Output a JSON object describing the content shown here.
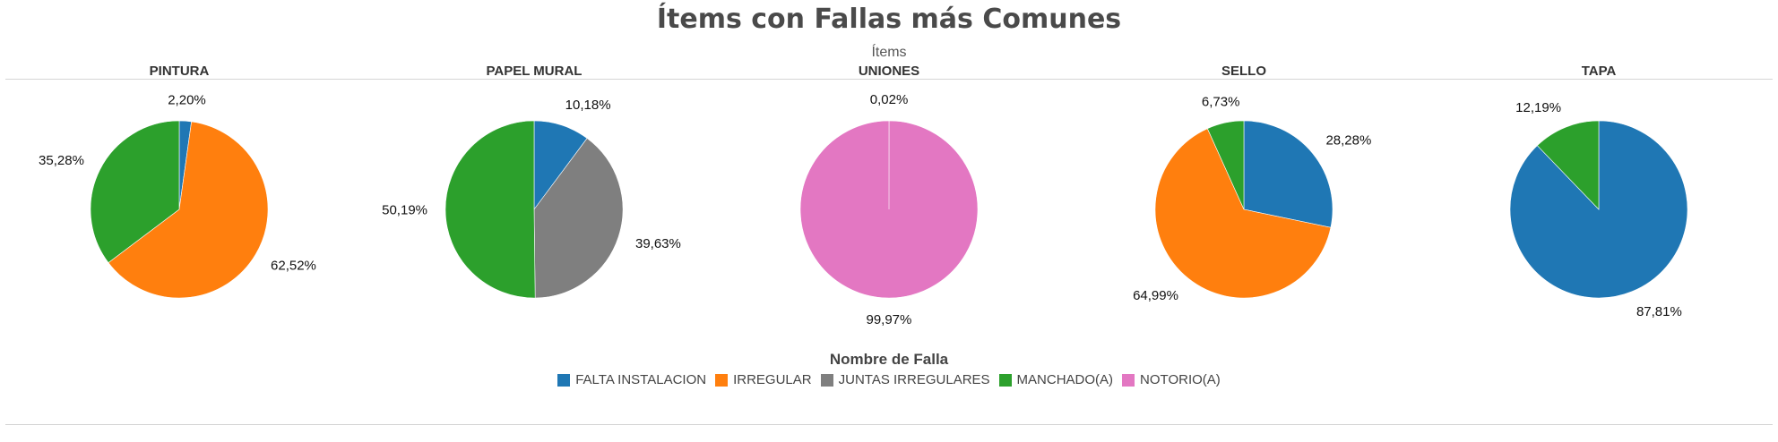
{
  "title": "Ítems con Fallas más Comunes",
  "header_label": "Ítems",
  "legend": {
    "title": "Nombre de Falla",
    "items": [
      {
        "label": "FALTA INSTALACION",
        "color": "#1f77b4"
      },
      {
        "label": "IRREGULAR",
        "color": "#ff7f0e"
      },
      {
        "label": "JUNTAS IRREGULARES",
        "color": "#7f7f7f"
      },
      {
        "label": "MANCHADO(A)",
        "color": "#2ca02c"
      },
      {
        "label": "NOTORIO(A)",
        "color": "#e377c2"
      }
    ]
  },
  "chart_data": [
    {
      "type": "pie",
      "title": "PINTURA",
      "slices": [
        {
          "name": "FALTA INSTALACION",
          "value": 2.2,
          "label": "2,20%"
        },
        {
          "name": "IRREGULAR",
          "value": 62.52,
          "label": "62,52%"
        },
        {
          "name": "MANCHADO(A)",
          "value": 35.28,
          "label": "35,28%"
        }
      ]
    },
    {
      "type": "pie",
      "title": "PAPEL MURAL",
      "slices": [
        {
          "name": "FALTA INSTALACION",
          "value": 10.18,
          "label": "10,18%"
        },
        {
          "name": "JUNTAS IRREGULARES",
          "value": 39.63,
          "label": "39,63%"
        },
        {
          "name": "MANCHADO(A)",
          "value": 50.19,
          "label": "50,19%"
        }
      ]
    },
    {
      "type": "pie",
      "title": "UNIONES",
      "slices": [
        {
          "name": "NOTORIO(A)",
          "value": 99.97,
          "label": "99,97%"
        },
        {
          "name": "MANCHADO(A)",
          "value": 0.02,
          "label": "0,02%"
        }
      ]
    },
    {
      "type": "pie",
      "title": "SELLO",
      "slices": [
        {
          "name": "FALTA INSTALACION",
          "value": 28.28,
          "label": "28,28%"
        },
        {
          "name": "IRREGULAR",
          "value": 64.99,
          "label": "64,99%"
        },
        {
          "name": "MANCHADO(A)",
          "value": 6.73,
          "label": "6,73%"
        }
      ]
    },
    {
      "type": "pie",
      "title": "TAPA",
      "slices": [
        {
          "name": "FALTA INSTALACION",
          "value": 87.81,
          "label": "87,81%"
        },
        {
          "name": "MANCHADO(A)",
          "value": 12.19,
          "label": "12,19%"
        }
      ]
    }
  ]
}
